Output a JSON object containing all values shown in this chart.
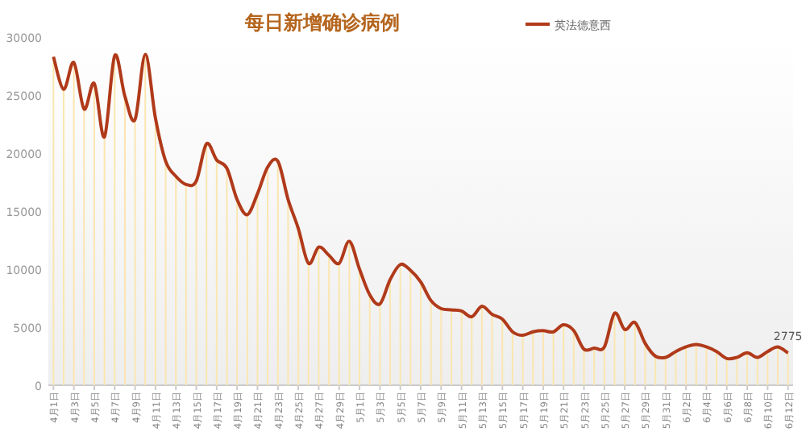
{
  "chart_data": {
    "type": "line",
    "title": "每日新增确诊病例",
    "categories": [
      "4月1日",
      null,
      "4月3日",
      null,
      "4月5日",
      null,
      "4月7日",
      null,
      "4月9日",
      null,
      "4月11日",
      null,
      "4月13日",
      null,
      "4月15日",
      null,
      "4月17日",
      null,
      "4月19日",
      null,
      "4月21日",
      null,
      "4月23日",
      null,
      "4月25日",
      null,
      "4月27日",
      null,
      "4月29日",
      null,
      "5月1日",
      null,
      "5月3日",
      null,
      "5月5日",
      null,
      "5月7日",
      null,
      "5月9日",
      null,
      "5月11日",
      null,
      "5月13日",
      null,
      "5月15日",
      null,
      "5月17日",
      null,
      "5月19日",
      null,
      "5月21日",
      null,
      "5月23日",
      null,
      "5月25日",
      null,
      "5月27日",
      null,
      "5月29日",
      null,
      "5月31日",
      null,
      "6月2日",
      null,
      "6月4日",
      null,
      "6月6日",
      null,
      "6月8日",
      null,
      "6月10日",
      null,
      "6月12日"
    ],
    "series": [
      {
        "type": "bar",
        "color": "#fbe6b0",
        "values": [
          28300,
          25500,
          27800,
          23800,
          26000,
          21400,
          28400,
          24900,
          22900,
          28500,
          23000,
          19300,
          18000,
          17300,
          17600,
          20800,
          19400,
          18700,
          16000,
          14700,
          16500,
          18800,
          19300,
          16000,
          13500,
          10500,
          11900,
          11200,
          10500,
          12400,
          10000,
          7800,
          7000,
          9100,
          10400,
          9900,
          8900,
          7300,
          6600,
          6500,
          6400,
          5900,
          6800,
          6100,
          5700,
          4600,
          4300,
          4600,
          4700,
          4600,
          5200,
          4700,
          3100,
          3200,
          3300,
          6200,
          4800,
          5400,
          3600,
          2500,
          2400,
          2900,
          3300,
          3500,
          3300,
          2900,
          2300,
          2400,
          2800,
          2400,
          2900,
          3300,
          2775
        ]
      },
      {
        "name": "英法德意西",
        "color": "#b03a1a",
        "values": [
          28300,
          25500,
          27800,
          23800,
          26000,
          21400,
          28400,
          24900,
          22900,
          28500,
          23000,
          19300,
          18000,
          17300,
          17600,
          20800,
          19400,
          18700,
          16000,
          14700,
          16500,
          18800,
          19300,
          16000,
          13500,
          10500,
          11900,
          11200,
          10500,
          12400,
          10000,
          7800,
          7000,
          9100,
          10400,
          9900,
          8900,
          7300,
          6600,
          6500,
          6400,
          5900,
          6800,
          6100,
          5700,
          4600,
          4300,
          4600,
          4700,
          4600,
          5200,
          4700,
          3100,
          3200,
          3300,
          6200,
          4800,
          5400,
          3600,
          2500,
          2400,
          2900,
          3300,
          3500,
          3300,
          2900,
          2300,
          2400,
          2800,
          2400,
          2900,
          3300,
          2775
        ]
      }
    ],
    "ylim": [
      0,
      30000
    ],
    "yticks": [
      0,
      5000,
      10000,
      15000,
      20000,
      25000,
      30000
    ],
    "annotations": [
      {
        "text": "2775",
        "x": "6月12日",
        "y": 2775
      }
    ],
    "legend": "top right",
    "grid": false
  }
}
